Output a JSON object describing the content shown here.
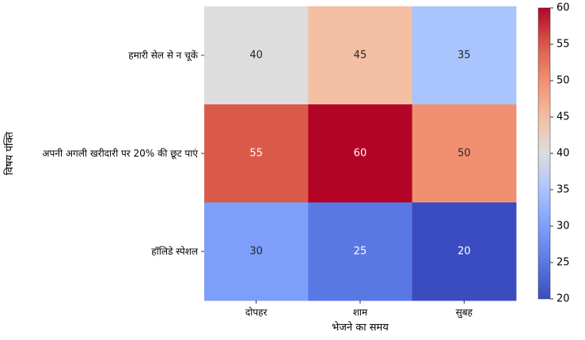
{
  "chart_data": {
    "type": "heatmap",
    "title": "",
    "xlabel": "भेजने का समय",
    "ylabel": "विषय पंक्ति",
    "x_categories": [
      "दोपहर",
      "शाम",
      "सुबह"
    ],
    "y_categories": [
      "हमारी सेल से न चूकें",
      "अपनी अगली खरीदारी पर 20% की छूट पाएं",
      "हॉलिडे स्पेशल"
    ],
    "values": [
      [
        40,
        45,
        35
      ],
      [
        55,
        60,
        50
      ],
      [
        30,
        25,
        20
      ]
    ],
    "annotated": true,
    "colormap": "coolwarm",
    "vmin": 20,
    "vmax": 60,
    "colorbar_ticks": [
      20,
      25,
      30,
      35,
      40,
      45,
      50,
      55,
      60
    ],
    "colors": {
      "low": "#3b4cc0",
      "mid": "#dddddd",
      "high": "#b40426"
    }
  }
}
